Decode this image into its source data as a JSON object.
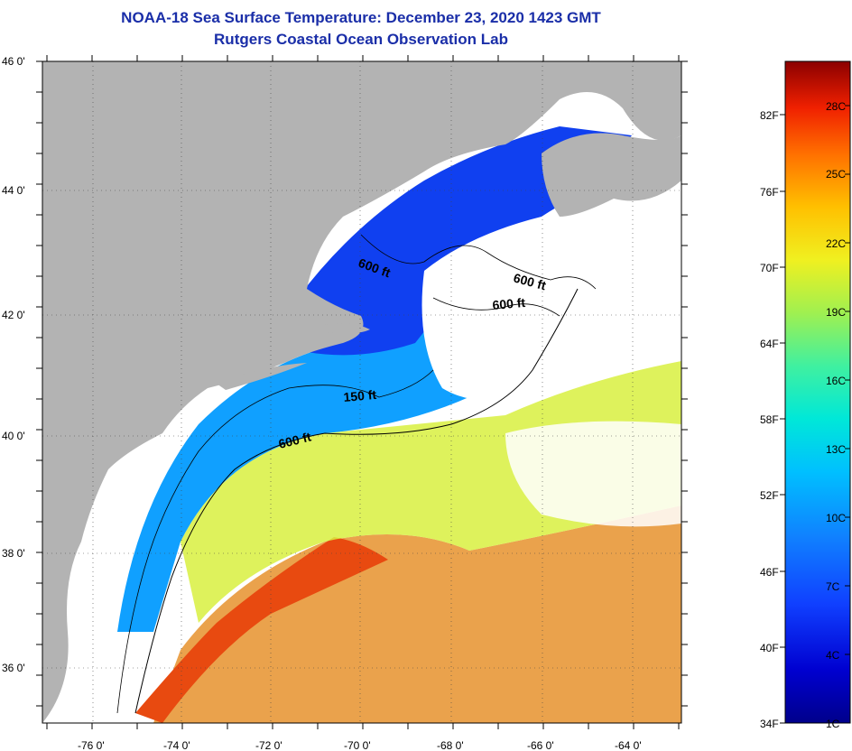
{
  "title": {
    "line1": "NOAA-18 Sea Surface Temperature:  December 23, 2020 1423 GMT",
    "line2": "Rutgers Coastal Ocean Observation Lab"
  },
  "axes": {
    "lat_labels": [
      "46 0'",
      "44 0'",
      "42 0'",
      "40 0'",
      "38 0'",
      "36 0'"
    ],
    "lon_labels": [
      "-76 0'",
      "-74 0'",
      "-72 0'",
      "-70 0'",
      "-68 0'",
      "-66 0'",
      "-64 0'"
    ]
  },
  "contours": {
    "labels": [
      "600 ft",
      "600 ft",
      "600 ft",
      "150 ft",
      "600 ft"
    ]
  },
  "colorbar": {
    "fahrenheit": [
      "82F",
      "76F",
      "70F",
      "64F",
      "58F",
      "52F",
      "46F",
      "40F",
      "34F"
    ],
    "celsius": [
      "28C",
      "25C",
      "22C",
      "19C",
      "16C",
      "13C",
      "10C",
      "7C",
      "4C",
      "1C"
    ]
  },
  "colors": {
    "title": "#1a2ea8",
    "land": "#b3b3b3",
    "cloud": "#ffffff",
    "cold": "#00008b",
    "warm": "#8b0000"
  }
}
